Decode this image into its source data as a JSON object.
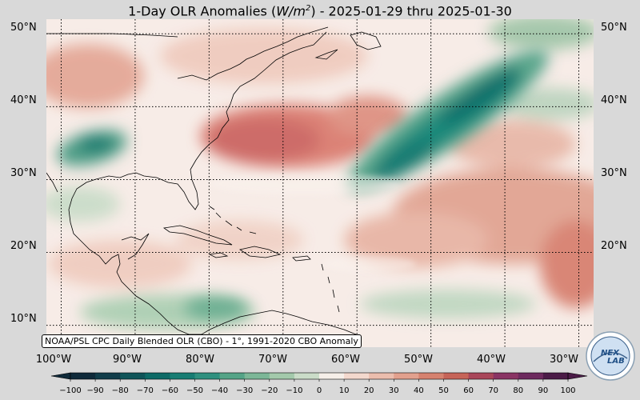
{
  "title": {
    "prefix": "1-Day OLR Anomalies (",
    "unit_base": "W/m",
    "unit_exp": "2",
    "suffix": ") - 2025-01-29 thru 2025-01-30"
  },
  "map": {
    "type": "filled-contour anomaly map",
    "region": "Atlantic / Caribbean",
    "lon_range": [
      -102,
      -28
    ],
    "lat_range": [
      7,
      52
    ],
    "graticule": "dotted",
    "lat_labels": [
      "50°N",
      "40°N",
      "30°N",
      "20°N",
      "10°N"
    ],
    "lon_labels": [
      "100°W",
      "90°W",
      "80°W",
      "70°W",
      "60°W",
      "50°W",
      "40°W",
      "30°W"
    ],
    "features": [
      {
        "kind": "positive anomaly",
        "location": "US East Coast to central Atlantic",
        "approx_center": [
          -68,
          35
        ]
      },
      {
        "kind": "negative anomaly",
        "location": "band from ~55W,28N to ~38W,45N",
        "approx_center": [
          -45,
          37
        ]
      },
      {
        "kind": "negative anomaly",
        "location": "southern Texas / Gulf",
        "approx_center": [
          -93,
          34
        ]
      },
      {
        "kind": "positive anomaly",
        "location": "subtropical Atlantic",
        "approx_center": [
          -40,
          22
        ]
      },
      {
        "kind": "negative anomaly",
        "location": "Central America / Caribbean",
        "approx_center": [
          -70,
          11
        ]
      }
    ]
  },
  "credit": "NOAA/PSL CPC Daily Blended OLR (CBO) - 1°, 1991-2020 CBO Anomaly",
  "colorbar": {
    "ticks": [
      "−100",
      "−90",
      "−80",
      "−70",
      "−60",
      "−50",
      "−40",
      "−30",
      "−20",
      "−10",
      "0",
      "10",
      "20",
      "30",
      "40",
      "50",
      "60",
      "70",
      "80",
      "90",
      "100"
    ],
    "colors": [
      "#0f2a3a",
      "#113d4a",
      "#0f5458",
      "#0d6a66",
      "#187d73",
      "#2f907f",
      "#54a487",
      "#7cb797",
      "#a3c9ab",
      "#cadcc8",
      "#f6efe9",
      "#f3d8cd",
      "#ebbdad",
      "#e2a08d",
      "#d6826f",
      "#c66458",
      "#a94659",
      "#8a3464",
      "#6d2a5e",
      "#4b1b47"
    ]
  },
  "logo": {
    "text_a": "NEX",
    "text_b": "LAB"
  },
  "colors": {
    "positive": "#d9776a",
    "strong_positive": "#cc5f5a",
    "negative": "#1f8a7c",
    "strong_negative": "#0f6f6a",
    "neutral": "#f7ece7"
  }
}
